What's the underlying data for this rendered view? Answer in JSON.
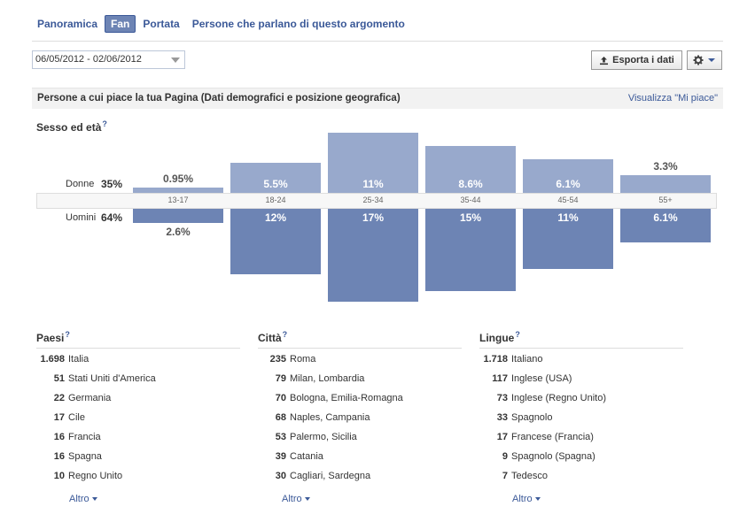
{
  "tabs": [
    {
      "label": "Panoramica",
      "active": false
    },
    {
      "label": "Fan",
      "active": true
    },
    {
      "label": "Portata",
      "active": false
    },
    {
      "label": "Persone che parlano di questo argomento",
      "active": false
    }
  ],
  "toolbar": {
    "date_range": "06/05/2012 - 02/06/2012",
    "export_label": "Esporta i dati",
    "gear_icon": "gear-icon"
  },
  "section": {
    "title": "Persone a cui piace la tua Pagina (Dati demografici e posizione geografica)",
    "link": "Visualizza \"Mi piace\""
  },
  "demographics": {
    "title": "Sesso ed età",
    "help": "?",
    "women": {
      "label": "Donne",
      "pct": "35%"
    },
    "men": {
      "label": "Uomini",
      "pct": "64%"
    }
  },
  "chart_data": {
    "type": "bar",
    "categories": [
      "13-17",
      "18-24",
      "25-34",
      "35-44",
      "45-54",
      "55+"
    ],
    "series": [
      {
        "name": "Donne",
        "values": [
          0.95,
          5.5,
          11,
          8.6,
          6.1,
          3.3
        ],
        "labels": [
          "0.95%",
          "5.5%",
          "11%",
          "8.6%",
          "6.1%",
          "3.3%"
        ],
        "color": "#98a9cc"
      },
      {
        "name": "Uomini",
        "values": [
          2.6,
          12,
          17,
          15,
          11,
          6.1
        ],
        "labels": [
          "2.6%",
          "12%",
          "17%",
          "15%",
          "11%",
          "6.1%"
        ],
        "color": "#6d84b4"
      }
    ]
  },
  "countries": {
    "title": "Paesi",
    "help": "?",
    "rows": [
      {
        "n": "1.698",
        "name": "Italia"
      },
      {
        "n": "51",
        "name": "Stati Uniti d'America"
      },
      {
        "n": "22",
        "name": "Germania"
      },
      {
        "n": "17",
        "name": "Cile"
      },
      {
        "n": "16",
        "name": "Francia"
      },
      {
        "n": "16",
        "name": "Spagna"
      },
      {
        "n": "10",
        "name": "Regno Unito"
      }
    ],
    "more": "Altro"
  },
  "cities": {
    "title": "Città",
    "help": "?",
    "rows": [
      {
        "n": "235",
        "name": "Roma"
      },
      {
        "n": "79",
        "name": "Milan, Lombardia"
      },
      {
        "n": "70",
        "name": "Bologna, Emilia-Romagna"
      },
      {
        "n": "68",
        "name": "Naples, Campania"
      },
      {
        "n": "53",
        "name": "Palermo, Sicilia"
      },
      {
        "n": "39",
        "name": "Catania"
      },
      {
        "n": "30",
        "name": "Cagliari, Sardegna"
      }
    ],
    "more": "Altro"
  },
  "languages": {
    "title": "Lingue",
    "help": "?",
    "rows": [
      {
        "n": "1.718",
        "name": "Italiano"
      },
      {
        "n": "117",
        "name": "Inglese (USA)"
      },
      {
        "n": "73",
        "name": "Inglese (Regno Unito)"
      },
      {
        "n": "33",
        "name": "Spagnolo"
      },
      {
        "n": "17",
        "name": "Francese (Francia)"
      },
      {
        "n": "9",
        "name": "Spagnolo (Spagna)"
      },
      {
        "n": "7",
        "name": "Tedesco"
      }
    ],
    "more": "Altro"
  }
}
